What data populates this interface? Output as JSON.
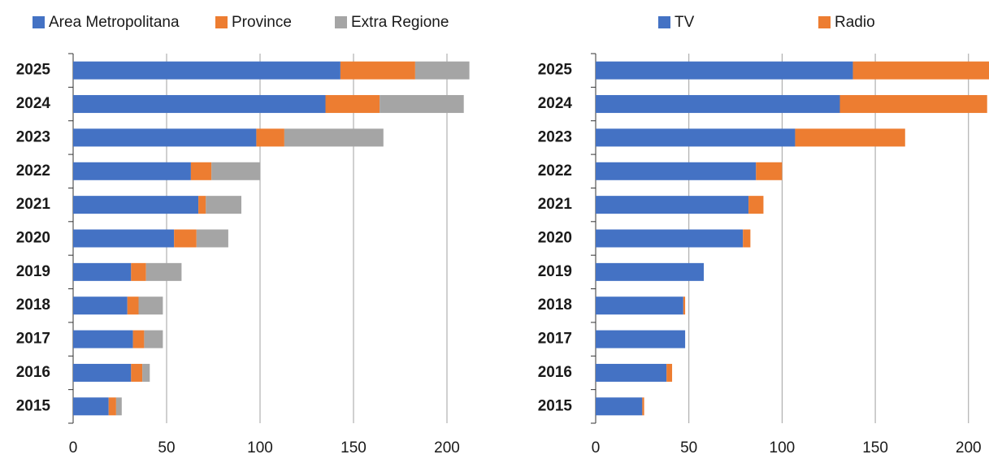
{
  "chart_data": [
    {
      "type": "bar",
      "stacked": true,
      "orientation": "horizontal",
      "categories": [
        "2025",
        "2024",
        "2023",
        "2022",
        "2021",
        "2020",
        "2019",
        "2018",
        "2017",
        "2016",
        "2015"
      ],
      "series": [
        {
          "name": "Area Metropolitana",
          "color": "#4472c4",
          "values": [
            143,
            135,
            98,
            63,
            67,
            54,
            31,
            29,
            32,
            31,
            19
          ]
        },
        {
          "name": "Province",
          "color": "#ed7d31",
          "values": [
            40,
            29,
            15,
            11,
            4,
            12,
            8,
            6,
            6,
            6,
            4
          ]
        },
        {
          "name": "Extra Regione",
          "color": "#a5a5a5",
          "values": [
            29,
            45,
            53,
            26,
            19,
            17,
            19,
            13,
            10,
            4,
            3
          ]
        }
      ],
      "xlim": [
        0,
        212
      ],
      "xticks": [
        0,
        50,
        100,
        150,
        200
      ],
      "grid": true
    },
    {
      "type": "bar",
      "stacked": true,
      "orientation": "horizontal",
      "categories": [
        "2025",
        "2024",
        "2023",
        "2022",
        "2021",
        "2020",
        "2019",
        "2018",
        "2017",
        "2016",
        "2015"
      ],
      "series": [
        {
          "name": "TV",
          "color": "#4472c4",
          "values": [
            138,
            131,
            107,
            86,
            82,
            79,
            58,
            47,
            48,
            38,
            25
          ]
        },
        {
          "name": "Radio",
          "color": "#ed7d31",
          "values": [
            73,
            79,
            59,
            14,
            8,
            4,
            0,
            1,
            0,
            3,
            1
          ]
        }
      ],
      "xlim": [
        0,
        211
      ],
      "xticks": [
        0,
        50,
        100,
        150,
        200
      ],
      "grid": true
    }
  ]
}
